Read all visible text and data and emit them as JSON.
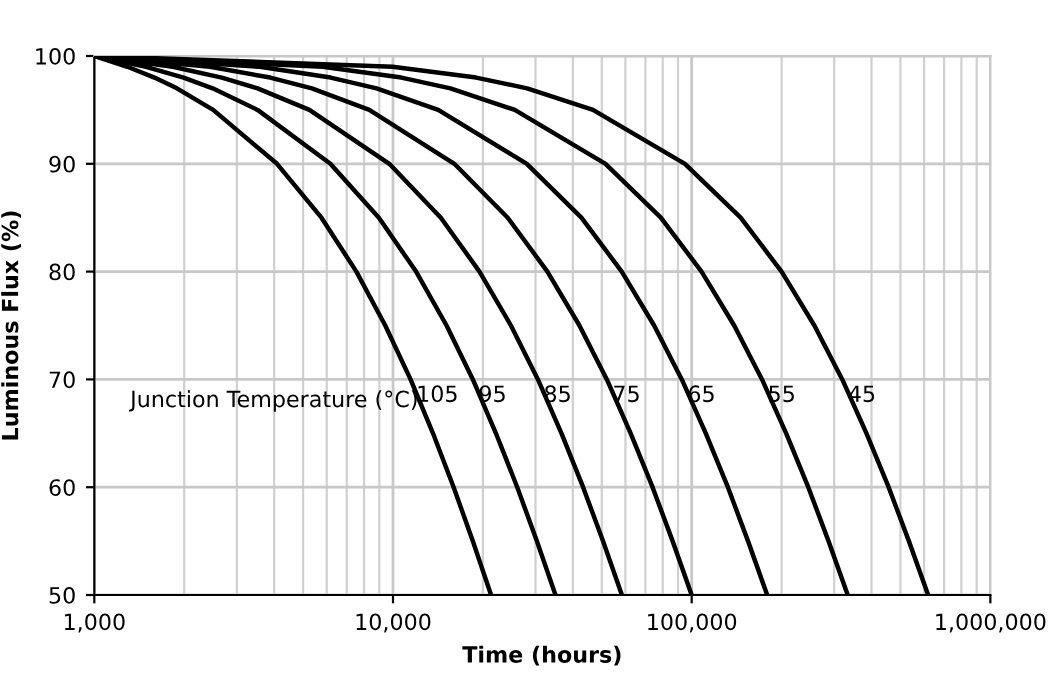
{
  "chart_data": {
    "type": "line",
    "xlabel": "Time (hours)",
    "ylabel": "Luminous Flux (%)",
    "log": "x",
    "grid": true,
    "legend": false,
    "marker": "none",
    "line_style": "solid",
    "xlim": [
      1000,
      1000000
    ],
    "ylim": [
      50,
      100
    ],
    "xticks": [
      {
        "value": 1000,
        "label": "1,000"
      },
      {
        "value": 10000,
        "label": "10,000"
      },
      {
        "value": 100000,
        "label": "100,000"
      },
      {
        "value": 1000000,
        "label": "1,000,000"
      }
    ],
    "yticks": [
      50,
      60,
      70,
      80,
      90,
      100
    ],
    "annotations": [
      "Junction Temperature (°C)"
    ],
    "series": [
      {
        "name": "105",
        "color": "#000000",
        "x": [
          1000,
          1290,
          1590,
          1890,
          2500,
          4090,
          5760,
          7540,
          9420,
          11450,
          13610,
          15960,
          18500,
          21300
        ],
        "values": [
          100,
          99,
          98,
          97,
          95,
          90,
          85,
          80,
          75,
          70,
          65,
          60,
          55,
          50
        ]
      },
      {
        "name": "95",
        "color": "#000000",
        "x": [
          1000,
          1490,
          1990,
          2490,
          3520,
          6170,
          8970,
          11950,
          15110,
          18510,
          22110,
          26060,
          30310,
          35000
        ],
        "values": [
          100,
          99,
          98,
          97,
          95,
          90,
          85,
          80,
          75,
          70,
          65,
          60,
          55,
          50
        ]
      },
      {
        "name": "85",
        "color": "#000000",
        "x": [
          1000,
          1830,
          2670,
          3520,
          5250,
          9720,
          14460,
          19480,
          24820,
          30560,
          36650,
          43300,
          50480,
          58400
        ],
        "values": [
          100,
          99,
          98,
          97,
          95,
          90,
          85,
          80,
          75,
          70,
          65,
          60,
          55,
          50
        ]
      },
      {
        "name": "75",
        "color": "#000000",
        "x": [
          1000,
          2440,
          3880,
          5350,
          8330,
          16050,
          24220,
          32880,
          42090,
          51990,
          62480,
          73960,
          86340,
          100000
        ],
        "values": [
          100,
          99,
          98,
          97,
          95,
          90,
          85,
          80,
          75,
          70,
          65,
          60,
          55,
          50
        ]
      },
      {
        "name": "65",
        "color": "#000000",
        "x": [
          1000,
          3580,
          6180,
          8810,
          14170,
          28060,
          42740,
          58320,
          74870,
          92670,
          111500,
          132200,
          154400,
          179000
        ],
        "values": [
          100,
          99,
          98,
          97,
          95,
          90,
          85,
          80,
          75,
          70,
          65,
          60,
          55,
          50
        ]
      },
      {
        "name": "55",
        "color": "#000000",
        "x": [
          1000,
          5810,
          10660,
          15570,
          25570,
          51460,
          78850,
          107900,
          138800,
          172000,
          207200,
          245700,
          287200,
          333000
        ],
        "values": [
          100,
          99,
          98,
          97,
          95,
          90,
          85,
          80,
          75,
          70,
          65,
          60,
          55,
          50
        ]
      },
      {
        "name": "45",
        "color": "#000000",
        "x": [
          1000,
          9960,
          18980,
          28130,
          46730,
          94940,
          145900,
          200000,
          257500,
          319300,
          384800,
          456500,
          533700,
          619000
        ],
        "values": [
          100,
          99,
          98,
          97,
          95,
          90,
          85,
          80,
          75,
          70,
          65,
          60,
          55,
          50
        ]
      }
    ]
  }
}
